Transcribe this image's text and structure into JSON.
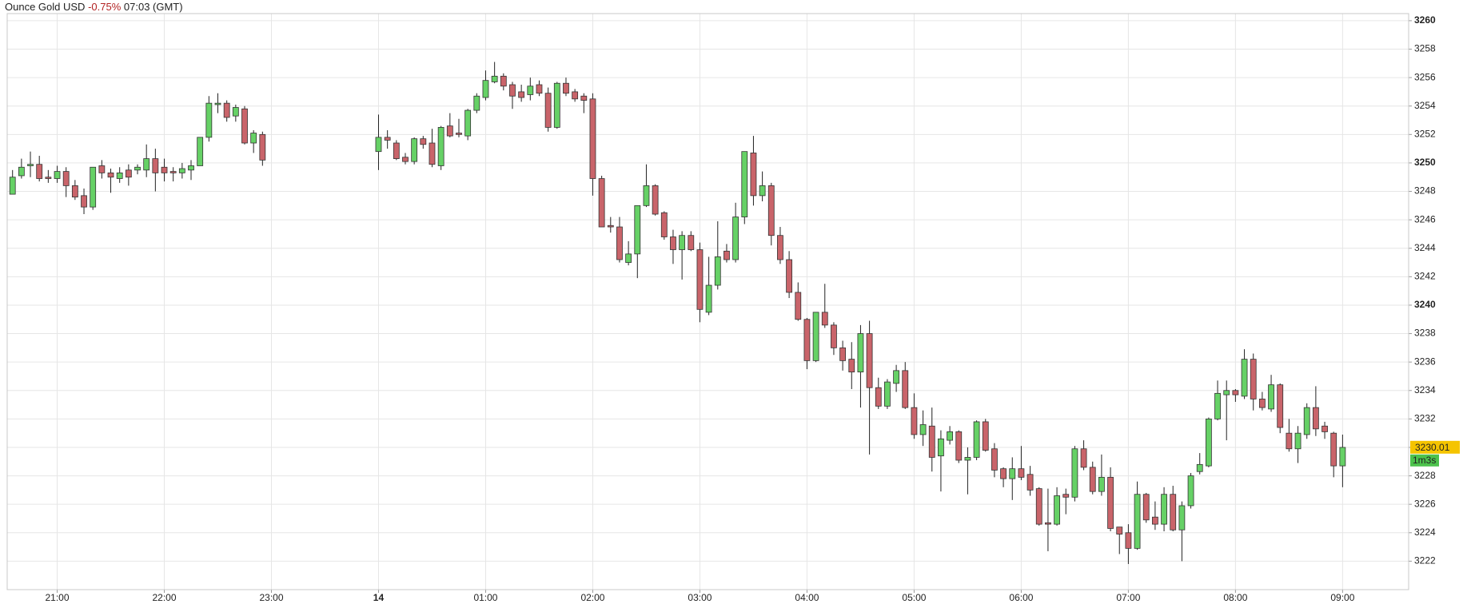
{
  "chart_data": {
    "type": "candlestick",
    "title": "Ounce Gold USD",
    "change": "-0.75%",
    "time": "07:03 (GMT)",
    "up_color": "#66d166",
    "down_color": "#c9646a",
    "grid": true,
    "last_price": 3230.01,
    "countdown": "1m3s",
    "ylim": [
      3220,
      3260.5
    ],
    "yticks": [
      3222,
      3224,
      3226,
      3228,
      3230,
      3232,
      3234,
      3236,
      3238,
      3240,
      3242,
      3244,
      3246,
      3248,
      3250,
      3252,
      3254,
      3256,
      3258,
      3260
    ],
    "xlim": [
      "20:32",
      "09:37"
    ],
    "xticks": [
      "21:00",
      "22:00",
      "23:00",
      {
        "value": "00:00",
        "label": "14"
      },
      "01:00",
      "02:00",
      "03:00",
      "04:00",
      "05:00",
      "06:00",
      "07:00",
      "08:00",
      "09:00"
    ],
    "x": [
      "20:35",
      "20:40",
      "20:45",
      "20:50",
      "20:55",
      "21:00",
      "21:05",
      "21:10",
      "21:15",
      "21:20",
      "21:25",
      "21:30",
      "21:35",
      "21:40",
      "21:45",
      "21:50",
      "21:55",
      "22:00",
      "22:05",
      "22:10",
      "22:15",
      "22:20",
      "22:25",
      "22:30",
      "22:35",
      "22:40",
      "22:45",
      "22:50",
      "22:55",
      "00:00",
      "00:05",
      "00:10",
      "00:15",
      "00:20",
      "00:25",
      "00:30",
      "00:35",
      "00:40",
      "00:45",
      "00:50",
      "00:55",
      "01:00",
      "01:05",
      "01:10",
      "01:15",
      "01:20",
      "01:25",
      "01:30",
      "01:35",
      "01:40",
      "01:45",
      "01:50",
      "01:55",
      "02:00",
      "02:05",
      "02:10",
      "02:15",
      "02:20",
      "02:25",
      "02:30",
      "02:35",
      "02:40",
      "02:45",
      "02:50",
      "02:55",
      "03:00",
      "03:05",
      "03:10",
      "03:15",
      "03:20",
      "03:25",
      "03:30",
      "03:35",
      "03:40",
      "03:45",
      "03:50",
      "03:55",
      "04:00",
      "04:05",
      "04:10",
      "04:15",
      "04:20",
      "04:25",
      "04:30",
      "04:35",
      "04:40",
      "04:45",
      "04:50",
      "04:55",
      "05:00",
      "05:05",
      "05:10",
      "05:15",
      "05:20",
      "05:25",
      "05:30",
      "05:35",
      "05:40",
      "05:45",
      "05:50",
      "05:55",
      "06:00",
      "06:05",
      "06:10",
      "06:15",
      "06:20",
      "06:25",
      "06:30",
      "06:35",
      "06:40",
      "06:45",
      "06:50",
      "06:55",
      "07:00",
      "07:05",
      "07:10",
      "07:15",
      "07:20",
      "07:25",
      "07:30",
      "07:35",
      "07:40",
      "07:45",
      "07:50",
      "07:55",
      "08:00",
      "08:05",
      "08:10",
      "08:15",
      "08:20",
      "08:25",
      "08:30",
      "08:35",
      "08:40",
      "08:45",
      "08:50",
      "08:55",
      "09:00"
    ],
    "open": [
      3247.8,
      3249.1,
      3249.8,
      3249.9,
      3249.0,
      3248.9,
      3249.4,
      3248.4,
      3247.7,
      3246.9,
      3249.8,
      3249.3,
      3248.9,
      3249.5,
      3249.5,
      3249.5,
      3250.3,
      3249.7,
      3249.4,
      3249.3,
      3249.5,
      3249.8,
      3251.8,
      3254.1,
      3254.2,
      3253.3,
      3253.8,
      3251.4,
      3252.0,
      3250.8,
      3251.8,
      3251.4,
      3250.4,
      3250.1,
      3251.7,
      3251.4,
      3249.8,
      3252.6,
      3252.1,
      3251.9,
      3253.7,
      3254.6,
      3255.7,
      3256.1,
      3255.5,
      3255.0,
      3254.8,
      3255.5,
      3254.9,
      3252.5,
      3255.6,
      3255.0,
      3254.7,
      3254.5,
      3248.9,
      3245.6,
      3245.5,
      3243.0,
      3243.6,
      3247.0,
      3248.4,
      3246.5,
      3244.8,
      3243.9,
      3244.9,
      3243.9,
      3239.5,
      3241.4,
      3243.8,
      3243.2,
      3246.2,
      3250.7,
      3247.7,
      3248.4,
      3244.9,
      3243.2,
      3240.9,
      3239.0,
      3236.1,
      3239.5,
      3238.6,
      3237.0,
      3236.2,
      3235.3,
      3238.0,
      3234.2,
      3232.9,
      3234.5,
      3235.4,
      3232.8,
      3230.9,
      3231.5,
      3229.4,
      3230.5,
      3231.1,
      3229.1,
      3229.3,
      3231.8,
      3229.9,
      3228.5,
      3227.8,
      3228.5,
      3228.1,
      3227.1,
      3224.7,
      3224.6,
      3226.7,
      3226.5,
      3229.9,
      3228.6,
      3226.9,
      3227.9,
      3224.4,
      3224.0,
      3222.9,
      3226.7,
      3225.1,
      3224.6,
      3226.7,
      3224.2,
      3225.9,
      3228.3,
      3228.7,
      3232.0,
      3233.7,
      3234.0,
      3233.6,
      3236.2,
      3233.4,
      3232.7,
      3234.4,
      3231.0,
      3229.9,
      3230.9,
      3232.8,
      3231.5,
      3231.0,
      3228.7
    ],
    "high": [
      3249.5,
      3250.3,
      3250.8,
      3250.5,
      3249.5,
      3249.8,
      3249.7,
      3248.8,
      3248.2,
      3249.7,
      3250.2,
      3249.6,
      3249.7,
      3249.9,
      3249.9,
      3251.3,
      3251.0,
      3250.3,
      3249.7,
      3250.0,
      3250.2,
      3251.8,
      3254.7,
      3254.9,
      3254.4,
      3254.1,
      3254.0,
      3252.3,
      3252.2,
      3253.4,
      3252.3,
      3251.6,
      3250.7,
      3251.8,
      3251.9,
      3252.4,
      3252.6,
      3253.5,
      3253.1,
      3253.8,
      3254.9,
      3256.5,
      3257.1,
      3256.3,
      3255.7,
      3255.5,
      3256.0,
      3255.8,
      3255.3,
      3255.7,
      3256.0,
      3255.2,
      3254.9,
      3254.9,
      3249.1,
      3246.2,
      3246.2,
      3244.5,
      3247.0,
      3249.9,
      3248.5,
      3246.6,
      3245.3,
      3245.2,
      3245.2,
      3244.4,
      3243.4,
      3245.9,
      3244.3,
      3247.2,
      3250.8,
      3251.9,
      3249.4,
      3248.6,
      3245.5,
      3243.8,
      3241.6,
      3239.1,
      3239.5,
      3241.5,
      3238.8,
      3237.5,
      3237.4,
      3238.6,
      3238.9,
      3234.9,
      3234.8,
      3235.8,
      3236.0,
      3233.8,
      3232.6,
      3232.8,
      3231.2,
      3231.5,
      3231.2,
      3230.0,
      3231.9,
      3232.0,
      3230.3,
      3228.6,
      3229.3,
      3230.1,
      3228.7,
      3227.2,
      3227.1,
      3227.2,
      3227.1,
      3230.1,
      3230.5,
      3229.0,
      3229.5,
      3228.6,
      3224.4,
      3224.6,
      3227.6,
      3226.8,
      3226.2,
      3227.2,
      3227.3,
      3226.2,
      3228.2,
      3229.6,
      3232.1,
      3234.7,
      3234.7,
      3234.1,
      3236.9,
      3236.6,
      3233.9,
      3235.1,
      3234.5,
      3232.0,
      3231.5,
      3233.1,
      3234.3,
      3231.8,
      3231.1,
      3230.9
    ],
    "low": [
      3247.8,
      3248.9,
      3249.0,
      3248.7,
      3248.6,
      3248.6,
      3247.6,
      3247.4,
      3246.4,
      3246.7,
      3248.9,
      3247.9,
      3248.6,
      3248.4,
      3249.2,
      3249.0,
      3248.0,
      3248.7,
      3248.7,
      3248.9,
      3248.8,
      3249.8,
      3251.5,
      3253.5,
      3252.9,
      3252.9,
      3251.3,
      3250.7,
      3249.8,
      3249.5,
      3251.0,
      3250.2,
      3249.9,
      3249.9,
      3251.0,
      3249.7,
      3249.5,
      3251.8,
      3251.8,
      3251.6,
      3253.5,
      3254.4,
      3255.6,
      3255.1,
      3253.8,
      3254.3,
      3254.4,
      3254.7,
      3252.2,
      3252.4,
      3254.7,
      3254.3,
      3253.5,
      3247.7,
      3245.5,
      3245.1,
      3243.0,
      3242.8,
      3241.9,
      3246.9,
      3246.3,
      3244.6,
      3242.9,
      3241.8,
      3243.8,
      3238.8,
      3239.3,
      3241.1,
      3243.0,
      3243.0,
      3245.7,
      3247.0,
      3247.3,
      3244.2,
      3242.9,
      3240.5,
      3238.9,
      3235.5,
      3236.0,
      3238.4,
      3236.5,
      3235.4,
      3234.1,
      3232.8,
      3229.5,
      3232.7,
      3232.7,
      3233.9,
      3232.7,
      3230.6,
      3230.1,
      3228.3,
      3226.9,
      3230.2,
      3228.9,
      3226.7,
      3229.1,
      3229.7,
      3227.9,
      3227.2,
      3226.3,
      3227.7,
      3226.6,
      3224.5,
      3222.7,
      3224.5,
      3225.3,
      3226.2,
      3228.4,
      3226.7,
      3226.6,
      3224.1,
      3222.5,
      3221.8,
      3222.8,
      3224.7,
      3224.2,
      3224.1,
      3224.1,
      3222.0,
      3225.7,
      3228.1,
      3228.6,
      3231.9,
      3230.5,
      3233.2,
      3233.4,
      3232.6,
      3232.6,
      3232.5,
      3231.0,
      3229.7,
      3228.9,
      3230.6,
      3230.8,
      3230.6,
      3227.9,
      3227.2
    ],
    "close": [
      3249.0,
      3249.7,
      3249.9,
      3248.9,
      3248.9,
      3249.4,
      3248.4,
      3247.6,
      3246.9,
      3249.7,
      3249.3,
      3249.0,
      3249.3,
      3249.0,
      3249.7,
      3250.3,
      3249.3,
      3249.3,
      3249.3,
      3249.6,
      3249.8,
      3251.8,
      3254.2,
      3254.2,
      3253.2,
      3253.9,
      3251.4,
      3252.1,
      3250.2,
      3251.8,
      3251.6,
      3250.3,
      3250.1,
      3251.7,
      3251.3,
      3249.9,
      3252.5,
      3251.9,
      3252.0,
      3253.7,
      3254.7,
      3255.8,
      3256.1,
      3255.4,
      3254.7,
      3254.6,
      3255.4,
      3254.9,
      3252.5,
      3255.6,
      3254.9,
      3254.5,
      3254.4,
      3248.9,
      3245.5,
      3245.5,
      3243.2,
      3243.6,
      3247.0,
      3248.4,
      3246.4,
      3244.8,
      3243.9,
      3244.9,
      3243.9,
      3239.7,
      3241.4,
      3243.4,
      3243.2,
      3246.2,
      3250.8,
      3247.7,
      3248.4,
      3244.9,
      3243.2,
      3240.9,
      3239.0,
      3236.1,
      3239.5,
      3238.6,
      3237.0,
      3236.1,
      3235.3,
      3238.0,
      3234.2,
      3232.9,
      3234.6,
      3235.4,
      3232.8,
      3230.9,
      3231.6,
      3229.3,
      3230.6,
      3231.1,
      3229.1,
      3229.3,
      3231.8,
      3229.8,
      3228.4,
      3227.8,
      3228.5,
      3227.9,
      3227.0,
      3224.6,
      3224.6,
      3226.6,
      3226.5,
      3229.9,
      3228.6,
      3226.9,
      3227.9,
      3224.3,
      3223.9,
      3222.9,
      3226.7,
      3224.9,
      3224.6,
      3226.7,
      3224.2,
      3225.9,
      3228.0,
      3228.8,
      3232.0,
      3233.8,
      3234.0,
      3233.7,
      3236.2,
      3233.4,
      3232.8,
      3234.4,
      3231.4,
      3229.9,
      3231.0,
      3232.8,
      3231.3,
      3231.1,
      3228.7,
      3230.0
    ]
  }
}
